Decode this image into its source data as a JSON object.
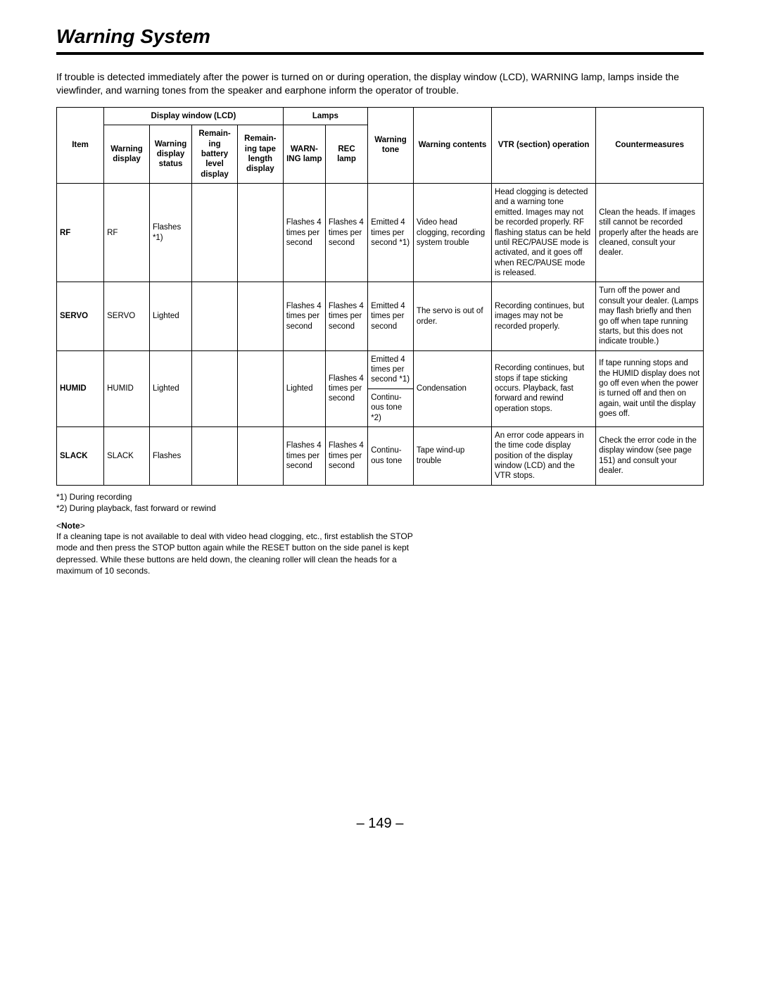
{
  "page": {
    "title": "Warning System",
    "intro": "If trouble is detected immediately after the power is turned on or during operation, the display window (LCD), WARNING lamp, lamps inside the viewfinder, and warning tones from the speaker and earphone inform the operator of trouble.",
    "page_number": "– 149 –"
  },
  "headers": {
    "group_display": "Display window (LCD)",
    "group_lamps": "Lamps",
    "item": "Item",
    "warning_display": "Warning display",
    "warning_display_status": "Warning display status",
    "battery": "Remain-ing battery level display",
    "tape_length": "Remain-ing tape length display",
    "warning_lamp": "WARN-ING lamp",
    "rec_lamp": "REC lamp",
    "warning_tone": "Warning tone",
    "warning_contents": "Warning contents",
    "vtr": "VTR (section) operation",
    "counter": "Countermeasures"
  },
  "rows": {
    "rf": {
      "item": "RF",
      "warning_display": "RF",
      "warning_display_status": "Flashes *1)",
      "battery": "",
      "tape_length": "",
      "warning_lamp": "Flashes 4 times per second",
      "rec_lamp": "Flashes 4 times per second",
      "warning_tone": "Emitted 4 times per second *1)",
      "warning_contents": "Video head clogging, recording system trouble",
      "vtr": "Head clogging is detected and a warning tone emitted. Images may not be recorded properly. RF flashing status can be held until REC/PAUSE mode is activated, and it goes off when REC/PAUSE mode is released.",
      "counter": "Clean the heads. If images still cannot be recorded properly after the heads are cleaned, consult your dealer."
    },
    "servo": {
      "item": "SERVO",
      "warning_display": "SERVO",
      "warning_display_status": "Lighted",
      "battery": "",
      "tape_length": "",
      "warning_lamp": "Flashes 4 times per second",
      "rec_lamp": "Flashes 4 times per second",
      "warning_tone": "Emitted 4 times per second",
      "warning_contents": "The servo is out of order.",
      "vtr": "Recording continues, but images may not be recorded properly.",
      "counter": "Turn off the power and consult your dealer. (Lamps may flash briefly and then go off when tape running starts, but this does not indicate trouble.)"
    },
    "humid": {
      "item": "HUMID",
      "warning_display": "HUMID",
      "warning_display_status": "Lighted",
      "battery": "",
      "tape_length": "",
      "warning_lamp": "Lighted",
      "rec_lamp": "Flashes 4 times per second",
      "warning_tone_a": "Emitted 4 times per second *1)",
      "warning_tone_b": "Continu-ous tone *2)",
      "warning_contents": "Condensation",
      "vtr": "Recording continues, but stops if tape sticking occurs. Playback, fast forward and rewind operation stops.",
      "counter": "If tape running stops and the HUMID display does not go off even when the power is turned off and then on again, wait until the display goes off."
    },
    "slack": {
      "item": "SLACK",
      "warning_display": "SLACK",
      "warning_display_status": "Flashes",
      "battery": "",
      "tape_length": "",
      "warning_lamp": "Flashes 4 times per second",
      "rec_lamp": "Flashes 4 times per second",
      "warning_tone": "Continu-ous tone",
      "warning_contents": "Tape wind-up trouble",
      "vtr": "An error code appears in the time code display position of the display window (LCD) and the VTR stops.",
      "counter": "Check the error code in the display window (see page 151) and consult your dealer."
    }
  },
  "footnotes": {
    "f1": "*1)  During recording",
    "f2": "*2)  During playback, fast forward or rewind"
  },
  "note": {
    "heading": "<Note>",
    "body": "If a cleaning tape is not available to deal with video head clogging, etc., first establish the STOP mode and then press the STOP button again while the RESET button on the side panel is kept depressed. While these buttons are held down, the cleaning roller will clean the heads for a maximum of 10 seconds."
  },
  "style": {
    "background_color": "#ffffff",
    "text_color": "#000000",
    "border_color": "#000000",
    "title_fontsize": 28,
    "body_fontsize": 14,
    "table_fontsize": 11.5,
    "footnote_fontsize": 12,
    "page_number_fontsize": 20
  }
}
